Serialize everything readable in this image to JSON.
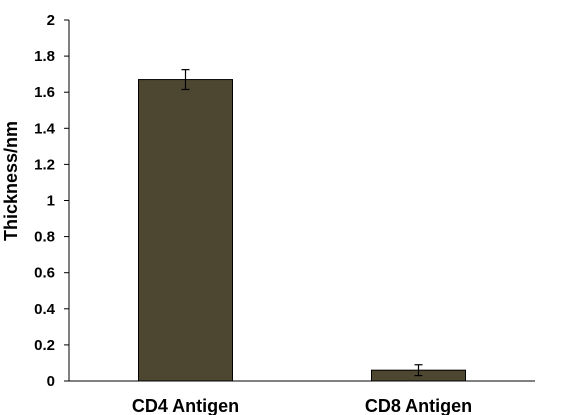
{
  "chart_data": {
    "type": "bar",
    "title": "",
    "xlabel": "",
    "ylabel": "Thickness/nm",
    "categories": [
      "CD4 Antigen",
      "CD8 Antigen"
    ],
    "values": [
      1.67,
      0.06
    ],
    "errors": [
      0.055,
      0.03
    ],
    "ylim": [
      0,
      2
    ],
    "yticks": [
      "0",
      "0.2",
      "0.4",
      "0.6",
      "0.8",
      "1",
      "1.2",
      "1.4",
      "1.6",
      "1.8",
      "2"
    ],
    "bar_color": "#4d4630",
    "grid": false,
    "legend": "none"
  }
}
